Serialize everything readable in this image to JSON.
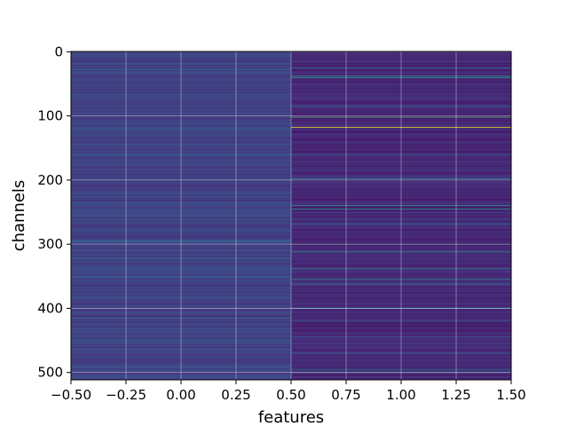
{
  "chart_data": {
    "type": "heatmap",
    "colormap": "viridis",
    "xlabel": "features",
    "ylabel": "channels",
    "x_ticks": [
      "−0.50",
      "−0.25",
      "0.00",
      "0.25",
      "0.50",
      "0.75",
      "1.00",
      "1.25",
      "1.50"
    ],
    "x_tick_values": [
      -0.5,
      -0.25,
      0.0,
      0.25,
      0.5,
      0.75,
      1.0,
      1.25,
      1.5
    ],
    "y_ticks": [
      "0",
      "100",
      "200",
      "300",
      "400",
      "500"
    ],
    "y_tick_values": [
      0,
      100,
      200,
      300,
      400,
      500
    ],
    "xlim": [
      -0.5,
      1.5
    ],
    "ylim": [
      511.5,
      -0.5
    ],
    "n_rows": 512,
    "n_cols": 2,
    "grid": true,
    "grid_color": "#ffffff",
    "columns": [
      {
        "feature_index": 0,
        "base_value": 0.2,
        "highlight_rows": [
          {
            "row": 28,
            "value": 0.35
          },
          {
            "row": 67,
            "value": 0.33
          },
          {
            "row": 120,
            "value": 0.32
          },
          {
            "row": 160,
            "value": 0.35
          },
          {
            "row": 200,
            "value": 0.3
          },
          {
            "row": 235,
            "value": 0.32
          },
          {
            "row": 262,
            "value": 0.33
          },
          {
            "row": 295,
            "value": 0.4
          },
          {
            "row": 322,
            "value": 0.45
          },
          {
            "row": 350,
            "value": 0.33
          },
          {
            "row": 378,
            "value": 0.32
          },
          {
            "row": 415,
            "value": 0.45
          },
          {
            "row": 450,
            "value": 0.33
          },
          {
            "row": 488,
            "value": 0.32
          },
          {
            "row": 505,
            "value": 0.35
          }
        ]
      },
      {
        "feature_index": 1,
        "base_value": 0.12,
        "highlight_rows": [
          {
            "row": 25,
            "value": 0.4
          },
          {
            "row": 38,
            "value": 0.6
          },
          {
            "row": 40,
            "value": 0.55
          },
          {
            "row": 85,
            "value": 0.4
          },
          {
            "row": 102,
            "value": 0.7
          },
          {
            "row": 118,
            "value": 1.0
          },
          {
            "row": 160,
            "value": 0.35
          },
          {
            "row": 198,
            "value": 0.5
          },
          {
            "row": 240,
            "value": 0.6
          },
          {
            "row": 245,
            "value": 0.5
          },
          {
            "row": 268,
            "value": 0.4
          },
          {
            "row": 300,
            "value": 0.4
          },
          {
            "row": 312,
            "value": 0.55
          },
          {
            "row": 338,
            "value": 0.45
          },
          {
            "row": 355,
            "value": 0.5
          },
          {
            "row": 362,
            "value": 0.45
          },
          {
            "row": 400,
            "value": 0.5
          },
          {
            "row": 420,
            "value": 0.35
          },
          {
            "row": 445,
            "value": 0.3
          },
          {
            "row": 470,
            "value": 0.35
          },
          {
            "row": 495,
            "value": 0.45
          },
          {
            "row": 500,
            "value": 0.4
          }
        ]
      }
    ]
  }
}
